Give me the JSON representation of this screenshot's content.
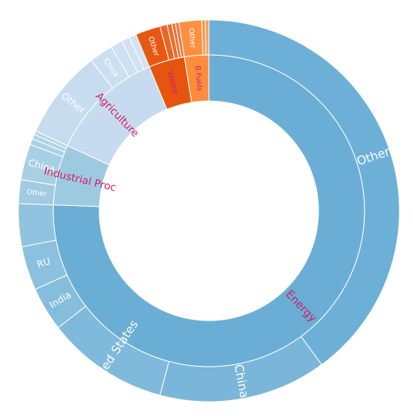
{
  "chart_data": {
    "type": "sunburst",
    "title": "",
    "unit": "",
    "colors": {
      "Energy": "#6aaed6",
      "Industrial Proc": "#9ecae1",
      "Agriculture": "#c6dbef",
      "Waste": "#e6550d",
      "B.Fuels": "#fd8d3c",
      "sector_label_color": "#d81b60"
    },
    "sectors": [
      {
        "name": "Energy",
        "value": 75.0,
        "children": [
          {
            "name": "Other",
            "value": 39.6
          },
          {
            "name": "China",
            "value": 14.1
          },
          {
            "name": "United States",
            "value": 10.3
          },
          {
            "name": "India",
            "value": 3.7
          },
          {
            "name": "RU",
            "value": 3.7
          },
          {
            "name": "",
            "value": 3.6
          }
        ]
      },
      {
        "name": "Industrial Proc",
        "value": 6.2,
        "children": [
          {
            "name": "Other",
            "value": 2.0
          },
          {
            "name": "China",
            "value": 3.0
          },
          {
            "name": "",
            "value": 0.5
          },
          {
            "name": "",
            "value": 0.4
          },
          {
            "name": "",
            "value": 0.3
          }
        ]
      },
      {
        "name": "Agriculture",
        "value": 11.8,
        "children": [
          {
            "name": "Other",
            "value": 7.5
          },
          {
            "name": "China",
            "value": 2.0
          },
          {
            "name": "",
            "value": 1.0
          },
          {
            "name": "",
            "value": 0.7
          },
          {
            "name": "",
            "value": 0.6
          }
        ]
      },
      {
        "name": "Waste",
        "value": 3.7,
        "children": [
          {
            "name": "Other",
            "value": 2.1
          },
          {
            "name": "",
            "value": 0.6
          },
          {
            "name": "",
            "value": 0.4
          },
          {
            "name": "",
            "value": 0.3
          },
          {
            "name": "",
            "value": 0.3
          }
        ]
      },
      {
        "name": "B.Fuels",
        "value": 2.5,
        "children": [
          {
            "name": "Other",
            "value": 1.9
          },
          {
            "name": "",
            "value": 0.3
          },
          {
            "name": "",
            "value": 0.3
          }
        ]
      }
    ]
  }
}
